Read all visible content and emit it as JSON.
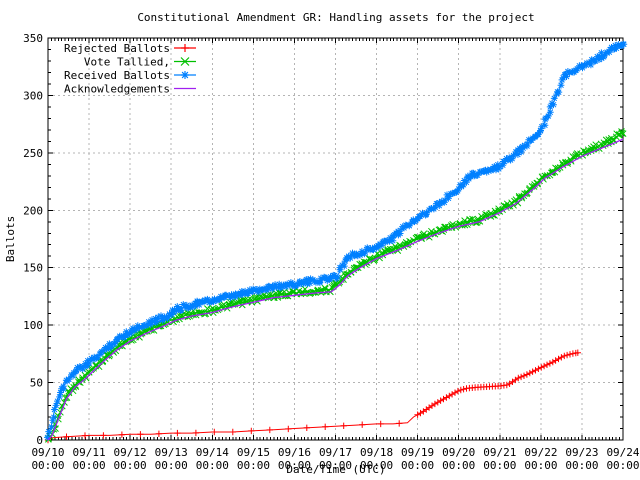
{
  "chart_data": {
    "type": "line",
    "title": "Constitutional Amendment GR: Handling assets for the project",
    "xlabel": "Date/Time (UTC)",
    "ylabel": "Ballots",
    "ylim": [
      0,
      350
    ],
    "y_tick_step": 50,
    "y_minor_step": 10,
    "x_minor_per_day": 12,
    "grid": true,
    "legend_position": "top-left",
    "background_color": "#ffffff",
    "grid_color": "#b4b4b4",
    "border_color": "#000000",
    "x_ticks": [
      {
        "date": "09/10",
        "time": "00:00"
      },
      {
        "date": "09/11",
        "time": "00:00"
      },
      {
        "date": "09/12",
        "time": "00:00"
      },
      {
        "date": "09/13",
        "time": "00:00"
      },
      {
        "date": "09/14",
        "time": "00:00"
      },
      {
        "date": "09/15",
        "time": "00:00"
      },
      {
        "date": "09/16",
        "time": "00:00"
      },
      {
        "date": "09/17",
        "time": "00:00"
      },
      {
        "date": "09/18",
        "time": "00:00"
      },
      {
        "date": "09/19",
        "time": "00:00"
      },
      {
        "date": "09/20",
        "time": "00:00"
      },
      {
        "date": "09/21",
        "time": "00:00"
      },
      {
        "date": "09/22",
        "time": "00:00"
      },
      {
        "date": "09/23",
        "time": "00:00"
      },
      {
        "date": "09/24",
        "time": "00:00"
      }
    ],
    "series": [
      {
        "name": "Rejected Ballots",
        "color": "#ff0000",
        "marker": "plus",
        "band": false,
        "dense_from_day": 8.6,
        "x": [
          0,
          0.1,
          0.5,
          1,
          1.5,
          2,
          2.5,
          3,
          3.5,
          4,
          4.5,
          5,
          5.5,
          6,
          6.5,
          7,
          7.5,
          8,
          8.4,
          8.75,
          8.9,
          9.1,
          9.4,
          9.7,
          10,
          10.2,
          10.5,
          11,
          11.2,
          11.45,
          11.6,
          12,
          12.3,
          12.55,
          12.75,
          12.9
        ],
        "y": [
          0,
          2,
          3,
          4,
          4,
          5,
          5,
          6,
          6,
          7,
          7,
          8,
          9,
          10,
          11,
          12,
          13,
          14,
          14,
          15,
          20,
          24,
          31,
          37,
          43,
          45,
          46,
          47,
          48,
          54,
          56,
          63,
          68,
          73,
          75,
          76
        ]
      },
      {
        "name": "Vote Tallied,",
        "color": "#00c000",
        "marker": "cross",
        "band": true,
        "x": [
          0,
          0.1,
          0.25,
          0.45,
          0.65,
          0.9,
          1.1,
          1.4,
          1.7,
          2,
          2.4,
          2.8,
          3.1,
          3.5,
          4,
          4.5,
          5,
          5.5,
          6,
          6.5,
          6.9,
          7.1,
          7.3,
          7.6,
          8,
          8.5,
          9,
          9.5,
          10,
          10.5,
          11,
          11.4,
          11.8,
          12.1,
          12.5,
          13,
          13.4,
          13.75,
          14
        ],
        "y": [
          0,
          5,
          20,
          38,
          48,
          55,
          62,
          72,
          81,
          88,
          95,
          101,
          106,
          110,
          113,
          118,
          122,
          126,
          128,
          130,
          131,
          138,
          146,
          152,
          160,
          167,
          175,
          182,
          188,
          192,
          200,
          208,
          220,
          230,
          239,
          250,
          256,
          262,
          268
        ]
      },
      {
        "name": "Received Ballots",
        "color": "#0080ff",
        "marker": "star",
        "band": true,
        "x": [
          0,
          0.05,
          0.15,
          0.3,
          0.45,
          0.6,
          0.8,
          1,
          1.2,
          1.5,
          1.8,
          2,
          2.3,
          2.6,
          2.9,
          3.1,
          3.4,
          3.8,
          4.2,
          4.6,
          5,
          5.4,
          5.8,
          6.2,
          6.6,
          6.9,
          7.05,
          7.25,
          7.4,
          7.6,
          8,
          8.4,
          8.8,
          9,
          9.3,
          9.7,
          10,
          10.2,
          10.4,
          10.9,
          11.2,
          11.5,
          11.8,
          12,
          12.15,
          12.35,
          12.55,
          12.7,
          13.1,
          13.35,
          13.6,
          13.85,
          14
        ],
        "y": [
          0,
          8,
          25,
          42,
          52,
          58,
          63,
          67,
          73,
          82,
          90,
          95,
          100,
          104,
          108,
          113,
          117,
          120,
          123,
          126,
          130,
          133,
          135,
          137,
          139,
          141,
          143,
          158,
          161,
          163,
          168,
          176,
          188,
          194,
          200,
          211,
          220,
          228,
          232,
          236,
          244,
          252,
          262,
          270,
          282,
          297,
          315,
          320,
          326,
          332,
          337,
          342,
          345
        ]
      },
      {
        "name": "Acknowledgements",
        "color": "#a020f0",
        "marker": "none",
        "band": false,
        "x": [
          0,
          0.1,
          0.25,
          0.45,
          0.65,
          0.9,
          1.1,
          1.4,
          1.7,
          2,
          2.4,
          2.8,
          3.1,
          3.5,
          4,
          4.5,
          5,
          5.5,
          6,
          6.5,
          6.9,
          7.1,
          7.3,
          7.6,
          8,
          8.5,
          9,
          9.5,
          10,
          10.5,
          11,
          11.4,
          11.8,
          12.1,
          12.5,
          13,
          13.4,
          13.75,
          14
        ],
        "y": [
          0,
          4,
          18,
          36,
          46,
          53,
          60,
          70,
          79,
          86,
          93,
          99,
          104,
          108,
          111,
          116,
          120,
          124,
          126,
          128,
          129,
          135,
          143,
          150,
          158,
          165,
          173,
          180,
          186,
          190,
          198,
          206,
          218,
          228,
          237,
          247,
          253,
          258,
          262
        ]
      }
    ]
  }
}
